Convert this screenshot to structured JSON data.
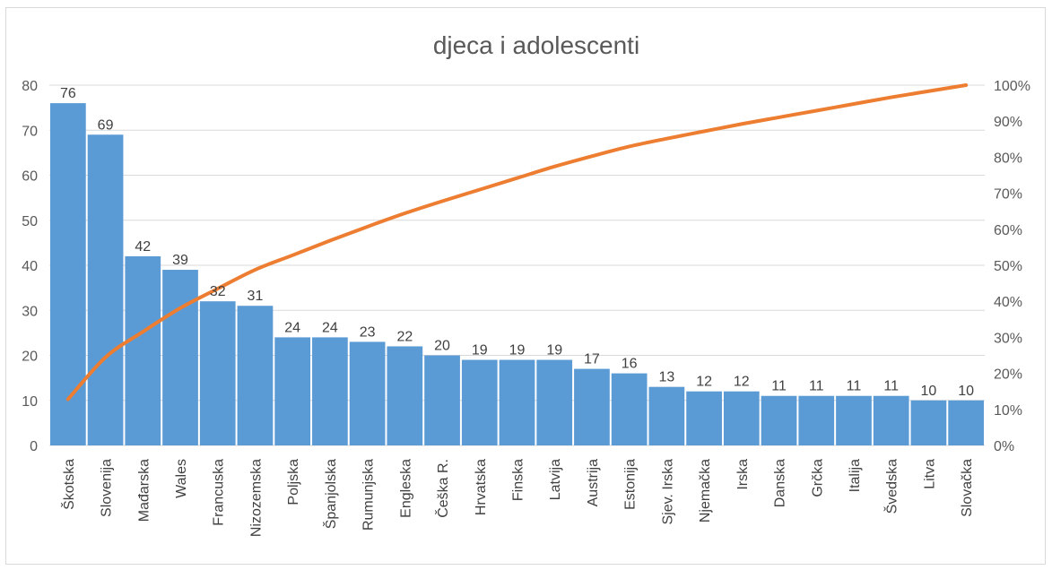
{
  "chart_data": {
    "type": "bar",
    "title": "djeca i adolescenti",
    "categories": [
      "Škotska",
      "Slovenija",
      "Mađarska",
      "Wales",
      "Francuska",
      "Nizozemska",
      "Poljska",
      "Španjolska",
      "Rumunjska",
      "Engleska",
      "Češka R.",
      "Hrvatska",
      "Finska",
      "Latvija",
      "Austrija",
      "Estonija",
      "Sjev. Irska",
      "Njemačka",
      "Irska",
      "Danska",
      "Grčka",
      "Italija",
      "Švedska",
      "Litva",
      "Slovačka"
    ],
    "series": [
      {
        "type": "bar",
        "axis": "left",
        "color": "#5b9bd5",
        "values": [
          76,
          69,
          42,
          39,
          32,
          31,
          24,
          24,
          23,
          22,
          20,
          19,
          19,
          19,
          17,
          16,
          13,
          12,
          12,
          11,
          11,
          11,
          11,
          10,
          10
        ]
      },
      {
        "type": "line",
        "axis": "right",
        "color": "#ed7d31",
        "cumulative_percent": true
      }
    ],
    "ylim": [
      0,
      80
    ],
    "yticks": [
      "0",
      "10",
      "20",
      "30",
      "40",
      "50",
      "60",
      "70",
      "80"
    ],
    "y2lim": [
      0,
      100
    ],
    "y2ticks": [
      "0%",
      "10%",
      "20%",
      "30%",
      "40%",
      "50%",
      "60%",
      "70%",
      "80%",
      "90%",
      "100%"
    ],
    "grid": true,
    "legend": "none"
  }
}
